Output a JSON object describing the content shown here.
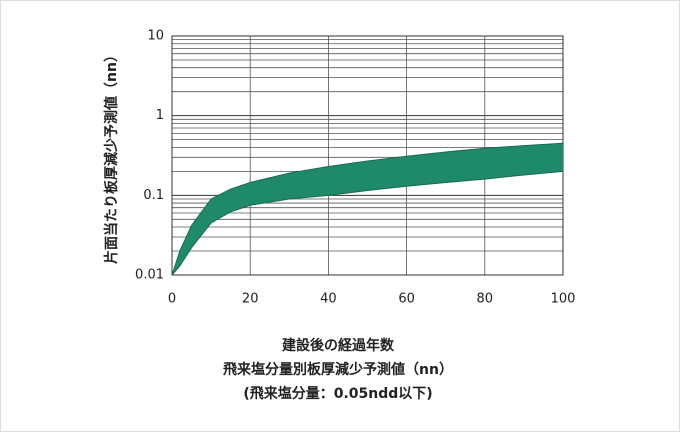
{
  "chart_data": {
    "type": "band",
    "ylabel": "片面当たり板厚減少予測値（nn）",
    "xlabel_lines": [
      "建設後の経過年数",
      "飛来塩分量別板厚減少予測値（nn）",
      "(飛来塩分量：0.05ndd以下)"
    ],
    "x": [
      0,
      2,
      5,
      10,
      15,
      20,
      30,
      40,
      50,
      60,
      70,
      80,
      90,
      100
    ],
    "series": [
      {
        "color": "#1f8a6a",
        "values": [
          0.01,
          0.02,
          0.042,
          0.09,
          0.12,
          0.145,
          0.19,
          0.23,
          0.27,
          0.31,
          0.35,
          0.39,
          0.42,
          0.45
        ]
      },
      {
        "color": "#1f8a6a",
        "values": [
          0.01,
          0.013,
          0.022,
          0.045,
          0.062,
          0.075,
          0.09,
          0.1,
          0.115,
          0.13,
          0.145,
          0.16,
          0.18,
          0.2
        ]
      }
    ],
    "xlim": [
      0,
      100
    ],
    "xticks": [
      0,
      20,
      40,
      60,
      80,
      100
    ],
    "ylim": [
      0.01,
      10
    ],
    "yticks": [
      0.01,
      0.1,
      1,
      10
    ],
    "log_y": true,
    "grid": true,
    "minor_grid": true
  }
}
